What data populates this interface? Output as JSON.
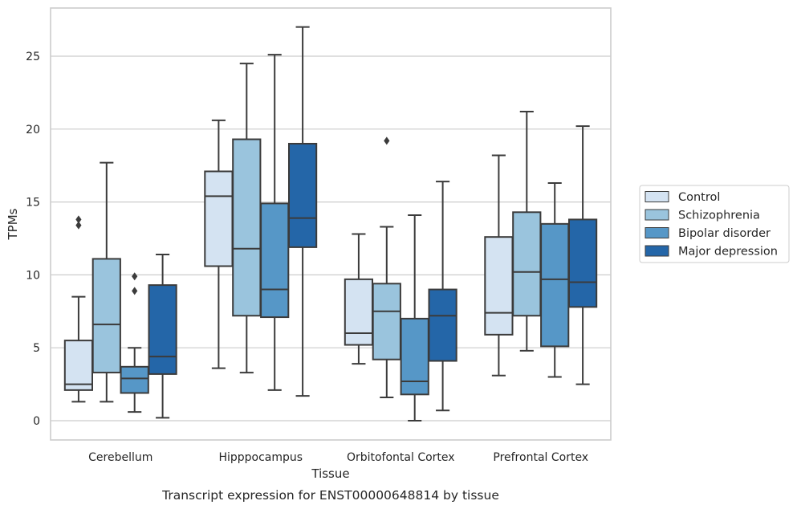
{
  "chart_data": {
    "type": "box",
    "caption": "Transcript expression for ENST00000648814 by tissue",
    "xlabel": "Tissue",
    "ylabel": "TPMs",
    "ylim": [
      -1.2,
      28.3
    ],
    "yticks": [
      0,
      5,
      10,
      15,
      20,
      25
    ],
    "grid": "horizontal",
    "legend_position": "right",
    "categories": [
      "Cerebellum",
      "Hipppocampus",
      "Orbitofontal Cortex",
      "Prefrontal Cortex"
    ],
    "series": [
      {
        "name": "Control",
        "color": "#d4e3f2",
        "boxes": [
          {
            "whislo": 1.3,
            "q1": 2.1,
            "med": 2.5,
            "q3": 5.5,
            "whishi": 8.5,
            "fliers": [
              13.4,
              13.8
            ]
          },
          {
            "whislo": 3.6,
            "q1": 10.6,
            "med": 15.4,
            "q3": 17.1,
            "whishi": 20.6,
            "fliers": []
          },
          {
            "whislo": 3.9,
            "q1": 5.2,
            "med": 6.0,
            "q3": 9.7,
            "whishi": 12.8,
            "fliers": []
          },
          {
            "whislo": 3.1,
            "q1": 5.9,
            "med": 7.4,
            "q3": 12.6,
            "whishi": 18.2,
            "fliers": []
          }
        ]
      },
      {
        "name": "Schizophrenia",
        "color": "#9ac4dd",
        "boxes": [
          {
            "whislo": 1.3,
            "q1": 3.3,
            "med": 6.6,
            "q3": 11.1,
            "whishi": 17.7,
            "fliers": []
          },
          {
            "whislo": 3.3,
            "q1": 7.2,
            "med": 11.8,
            "q3": 19.3,
            "whishi": 24.5,
            "fliers": []
          },
          {
            "whislo": 1.6,
            "q1": 4.2,
            "med": 7.5,
            "q3": 9.4,
            "whishi": 13.3,
            "fliers": [
              19.2
            ]
          },
          {
            "whislo": 4.8,
            "q1": 7.2,
            "med": 10.2,
            "q3": 14.3,
            "whishi": 21.2,
            "fliers": []
          }
        ]
      },
      {
        "name": "Bipolar disorder",
        "color": "#5697c7",
        "boxes": [
          {
            "whislo": 0.6,
            "q1": 1.9,
            "med": 2.9,
            "q3": 3.7,
            "whishi": 5.0,
            "fliers": [
              8.9,
              9.9
            ]
          },
          {
            "whislo": 2.1,
            "q1": 7.1,
            "med": 9.0,
            "q3": 14.9,
            "whishi": 25.1,
            "fliers": []
          },
          {
            "whislo": 0.0,
            "q1": 1.8,
            "med": 2.7,
            "q3": 7.0,
            "whishi": 14.1,
            "fliers": []
          },
          {
            "whislo": 3.0,
            "q1": 5.1,
            "med": 9.7,
            "q3": 13.5,
            "whishi": 16.3,
            "fliers": []
          }
        ]
      },
      {
        "name": "Major depression",
        "color": "#2466a8",
        "boxes": [
          {
            "whislo": 0.2,
            "q1": 3.2,
            "med": 4.4,
            "q3": 9.3,
            "whishi": 11.4,
            "fliers": []
          },
          {
            "whislo": 1.7,
            "q1": 11.9,
            "med": 13.9,
            "q3": 19.0,
            "whishi": 27.0,
            "fliers": []
          },
          {
            "whislo": 0.7,
            "q1": 4.1,
            "med": 7.2,
            "q3": 9.0,
            "whishi": 16.4,
            "fliers": []
          },
          {
            "whislo": 2.5,
            "q1": 7.8,
            "med": 9.5,
            "q3": 13.8,
            "whishi": 20.2,
            "fliers": []
          }
        ]
      }
    ]
  },
  "colors": {
    "grid": "#cccccc",
    "frame": "#cccccc",
    "box_edge": "#3b3b3b",
    "text": "#262626"
  }
}
